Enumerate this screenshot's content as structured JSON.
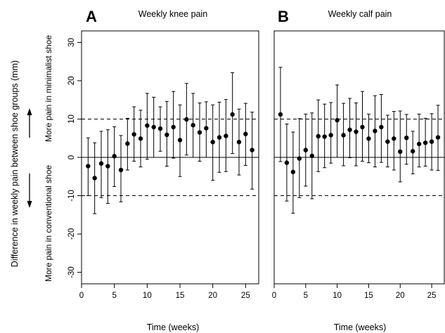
{
  "figure": {
    "y_axis_title": "Difference in weekly pain between shoe groups (mm)",
    "annotation_up": "More pain in minimalist shoe",
    "annotation_down": "More pain in conventional shoe"
  },
  "chart_data": [
    {
      "type": "scatter",
      "panel_label": "A",
      "title": "Weekly knee pain",
      "xlabel": "Time (weeks)",
      "ylabel": "",
      "xlim": [
        0,
        27
      ],
      "ylim": [
        -33,
        33
      ],
      "xticks": [
        0,
        5,
        10,
        15,
        20,
        25
      ],
      "yticks": [
        -30,
        -20,
        -10,
        0,
        10,
        20,
        30
      ],
      "reference_lines": [
        {
          "y": 0,
          "style": "solid"
        },
        {
          "y": 10,
          "style": "dashed"
        },
        {
          "y": -10,
          "style": "dashed"
        }
      ],
      "grid": false,
      "x": [
        1,
        2,
        3,
        4,
        5,
        6,
        7,
        8,
        9,
        10,
        11,
        12,
        13,
        14,
        15,
        16,
        17,
        18,
        19,
        20,
        21,
        22,
        23,
        24,
        25,
        26
      ],
      "y": [
        -2.3,
        -5.4,
        -1.6,
        -2.3,
        0.3,
        -3.3,
        3.6,
        6,
        4.9,
        8.3,
        7.9,
        7.5,
        5.9,
        7.9,
        4.5,
        9.9,
        8.4,
        6.5,
        7.6,
        4,
        5.2,
        5.6,
        11.2,
        4,
        6.1,
        1.9
      ],
      "lower": [
        -10,
        -14.7,
        -10.5,
        -12,
        -7.6,
        -11.6,
        -3.3,
        -1,
        -2.5,
        -0.5,
        0,
        1.6,
        -2.3,
        -0.2,
        -5,
        0.6,
        0,
        -1,
        0,
        -6,
        -3.9,
        -3.7,
        1,
        -4.6,
        -2.1,
        -8.3
      ],
      "upper": [
        5.1,
        3.8,
        6.8,
        7.2,
        8,
        5.7,
        10.2,
        13.2,
        12.3,
        16.7,
        15.7,
        13.2,
        14.6,
        17.2,
        13.7,
        19.3,
        16.7,
        14.2,
        14.5,
        13.7,
        14.4,
        15.1,
        22.1,
        12.6,
        14.1,
        11.8
      ]
    },
    {
      "type": "scatter",
      "panel_label": "B",
      "title": "Weekly calf pain",
      "xlabel": "Time (weeks)",
      "ylabel": "",
      "xlim": [
        0,
        27
      ],
      "ylim": [
        -33,
        33
      ],
      "xticks": [
        0,
        5,
        10,
        15,
        20,
        25
      ],
      "yticks": [
        -30,
        -20,
        -10,
        0,
        10,
        20,
        30
      ],
      "reference_lines": [
        {
          "y": 0,
          "style": "solid"
        },
        {
          "y": 10,
          "style": "dashed"
        },
        {
          "y": -10,
          "style": "dashed"
        }
      ],
      "grid": false,
      "x": [
        1,
        2,
        3,
        4,
        5,
        6,
        7,
        8,
        9,
        10,
        11,
        12,
        13,
        14,
        15,
        16,
        17,
        18,
        19,
        20,
        21,
        22,
        23,
        24,
        25,
        26
      ],
      "y": [
        11.2,
        -1.4,
        -3.8,
        -0.3,
        1.9,
        0.4,
        5.5,
        5.4,
        5.8,
        9.7,
        5.8,
        7.2,
        6.7,
        7.9,
        4.9,
        6.9,
        7.9,
        4.1,
        4.9,
        1.5,
        5.1,
        1.6,
        3.5,
        3.8,
        4.1,
        5.2
      ],
      "lower": [
        -1.1,
        -11.4,
        -14.6,
        -10.5,
        -7.5,
        -10.8,
        -3.7,
        -2.7,
        -1.5,
        0,
        -2.2,
        -0.1,
        -2.2,
        -1,
        -1.4,
        -2.5,
        -1.3,
        -2.5,
        -3.3,
        -6.4,
        -1.8,
        -4.3,
        -2.5,
        -2.3,
        -3.3,
        -3.4
      ],
      "upper": [
        23.5,
        8.7,
        6.6,
        10.1,
        11.3,
        11.6,
        15,
        13.9,
        14.3,
        18.9,
        14.1,
        15.4,
        14.2,
        17.2,
        11.3,
        16.1,
        16.4,
        11,
        12,
        12.1,
        11.2,
        6.8,
        11.3,
        10.2,
        11.4,
        13.6
      ]
    }
  ]
}
